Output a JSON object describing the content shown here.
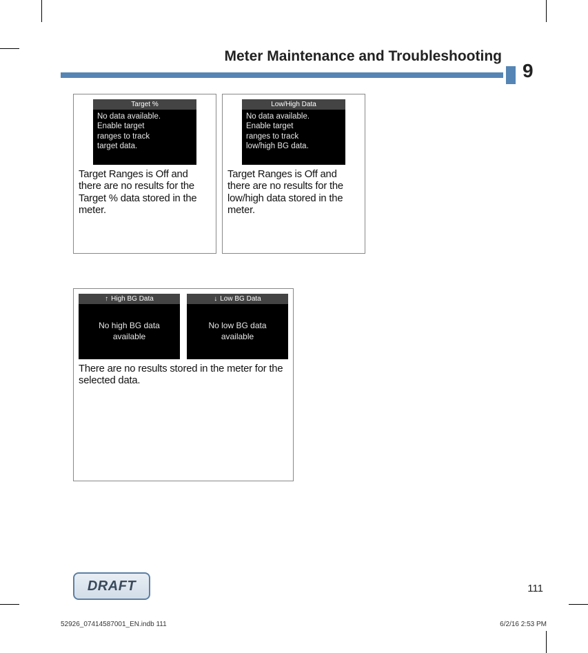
{
  "header": {
    "title": "Meter Maintenance and Troubleshooting",
    "chapter": "9",
    "bar_color": "#5585b5"
  },
  "cards": [
    {
      "screen_title": "Target %",
      "screen_lines": [
        "No data available.",
        "Enable target",
        "ranges to track",
        "target data."
      ],
      "caption": "Target Ranges is Off and there are no results for the Target % data stored in the meter."
    },
    {
      "screen_title": "Low/High Data",
      "screen_lines": [
        "No data available.",
        "Enable target",
        "ranges to track",
        "low/high BG data."
      ],
      "caption": "Target Ranges is Off and there are no results for the low/high data stored in the meter."
    }
  ],
  "wide_card": {
    "screens": [
      {
        "arrow": "↑",
        "title": "High BG Data",
        "center_lines": [
          "No high BG data",
          "available"
        ]
      },
      {
        "arrow": "↓",
        "title": "Low BG Data",
        "center_lines": [
          "No low BG data",
          "available"
        ]
      }
    ],
    "caption": "There are no results stored in the meter for the selected data."
  },
  "draft_label": "DRAFT",
  "page_number": "111",
  "footer": {
    "left": "52926_07414587001_EN.indb   111",
    "right": "6/2/16   2:53 PM"
  },
  "colors": {
    "screen_bg": "#000000",
    "screen_text": "#e8e8e8",
    "screen_titlebar": "#444444",
    "border": "#888888"
  }
}
